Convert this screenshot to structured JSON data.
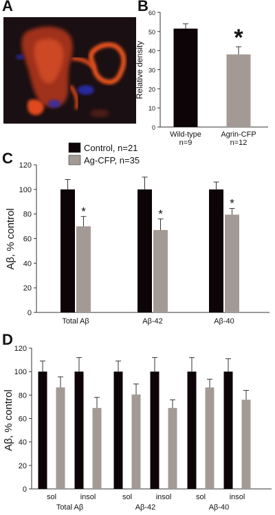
{
  "panels": {
    "A": {
      "letter": "A"
    },
    "B": {
      "letter": "B"
    },
    "C": {
      "letter": "C"
    },
    "D": {
      "letter": "D"
    }
  },
  "colors": {
    "control": "#0d0407",
    "treated": "#a49a95",
    "axis": "#333333",
    "micro_red": "#d8441c",
    "micro_blue": "#2a2fb8",
    "micro_bg": "#1a0f12"
  },
  "chart_data": [
    {
      "panel": "B",
      "type": "bar",
      "categories": [
        "Wild-type\nn=9",
        "Agrin-CFP\nn=12"
      ],
      "values": [
        51.5,
        38
      ],
      "errors": [
        2.5,
        4
      ],
      "bar_colors": [
        "#0d0407",
        "#a49a95"
      ],
      "ylabel": "Relative density",
      "ylim": [
        0,
        60
      ],
      "yticks": [
        0,
        10,
        20,
        30,
        40,
        50,
        60
      ],
      "annotations": [
        {
          "category": 1,
          "text": "*"
        }
      ]
    },
    {
      "panel": "C",
      "type": "bar",
      "categories": [
        "Total Aβ",
        "Aβ-42",
        "Aβ-40"
      ],
      "series": [
        {
          "name": "Control, n=21",
          "color": "#0d0407",
          "values": [
            100,
            100,
            100
          ],
          "errors": [
            8,
            10,
            6
          ]
        },
        {
          "name": "Ag-CFP, n=35",
          "color": "#a49a95",
          "values": [
            70,
            67,
            79.5
          ],
          "errors": [
            8,
            9,
            5
          ]
        }
      ],
      "ylabel": "Aβ, % control",
      "ylim": [
        0,
        120
      ],
      "yticks": [
        0,
        20,
        40,
        60,
        80,
        100,
        120
      ],
      "legend": "top-left",
      "annotations": [
        {
          "category": 0,
          "series": 1,
          "text": "*"
        },
        {
          "category": 1,
          "series": 1,
          "text": "*"
        },
        {
          "category": 2,
          "series": 1,
          "text": "*"
        }
      ]
    },
    {
      "panel": "D",
      "type": "bar",
      "groups": [
        "Total Aβ",
        "Aβ-42",
        "Aβ-40"
      ],
      "categories": [
        "sol",
        "insol",
        "sol",
        "insol",
        "sol",
        "insol"
      ],
      "series": [
        {
          "name": "Control",
          "color": "#0d0407",
          "values": [
            100,
            100,
            100,
            100,
            100,
            100
          ],
          "errors": [
            9,
            12,
            9,
            12,
            12,
            11
          ]
        },
        {
          "name": "Ag-CFP",
          "color": "#a49a95",
          "values": [
            86.5,
            69,
            80.5,
            69,
            86.5,
            76
          ],
          "errors": [
            9,
            9,
            9,
            7,
            7,
            8
          ]
        }
      ],
      "ylabel": "Aβ, % control",
      "ylim": [
        0,
        120
      ],
      "yticks": [
        0,
        20,
        40,
        60,
        80,
        100,
        120
      ]
    }
  ]
}
